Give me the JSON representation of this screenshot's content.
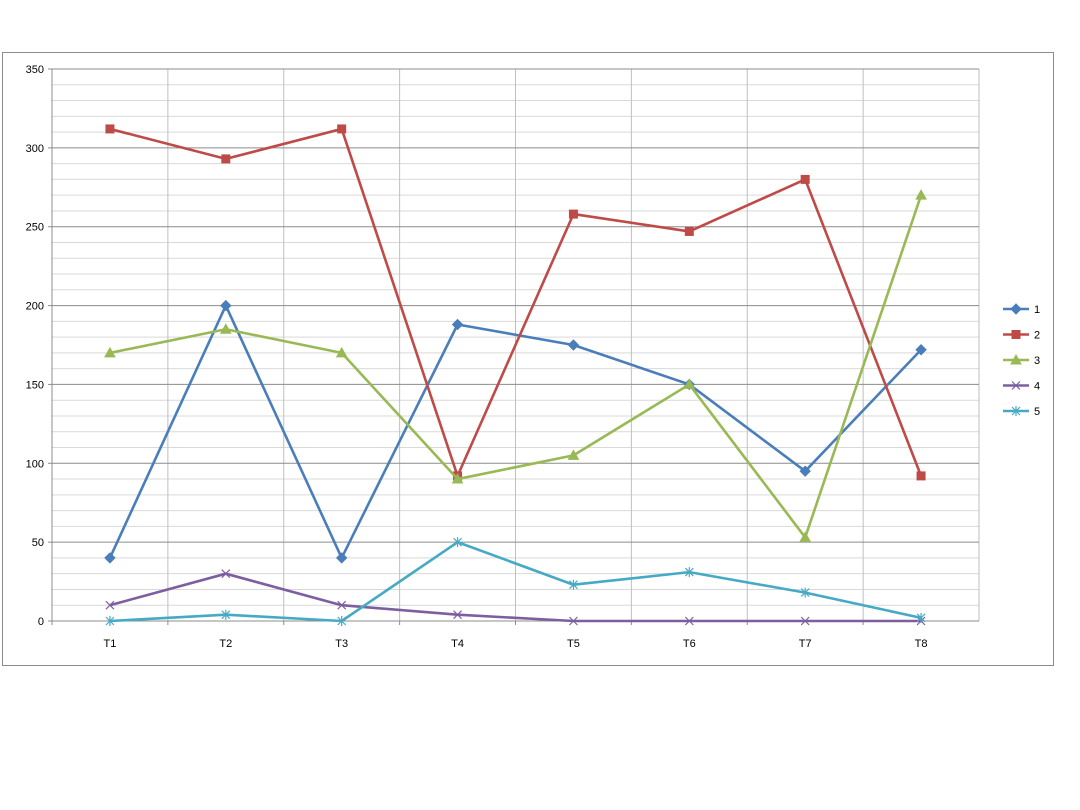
{
  "chart_data": {
    "type": "line",
    "title": "",
    "xlabel": "",
    "ylabel": "",
    "categories": [
      "T1",
      "T2",
      "T3",
      "T4",
      "T5",
      "T6",
      "T7",
      "T8"
    ],
    "ylim": [
      0,
      350
    ],
    "yticks": [
      0,
      50,
      100,
      150,
      200,
      250,
      300,
      350
    ],
    "ytick_labels": [
      "0",
      "50",
      "100",
      "150",
      "200",
      "250",
      "300",
      "350"
    ],
    "grid": {
      "major": true,
      "minor": true,
      "vertical": true
    },
    "legend_position": "right",
    "series": [
      {
        "name": "1",
        "color": "#4a7ebb",
        "marker": "diamond",
        "values": [
          40,
          200,
          40,
          188,
          175,
          150,
          95,
          172
        ]
      },
      {
        "name": "2",
        "color": "#be4b48",
        "marker": "square",
        "values": [
          312,
          293,
          312,
          92,
          258,
          247,
          280,
          92
        ]
      },
      {
        "name": "3",
        "color": "#98b954",
        "marker": "triangle",
        "values": [
          170,
          185,
          170,
          90,
          105,
          150,
          53,
          270
        ]
      },
      {
        "name": "4",
        "color": "#7d5fa0",
        "marker": "x",
        "values": [
          10,
          30,
          10,
          4,
          0,
          0,
          0,
          0
        ]
      },
      {
        "name": "5",
        "color": "#46aac5",
        "marker": "star",
        "values": [
          0,
          4,
          0,
          50,
          23,
          31,
          18,
          2
        ]
      }
    ]
  }
}
